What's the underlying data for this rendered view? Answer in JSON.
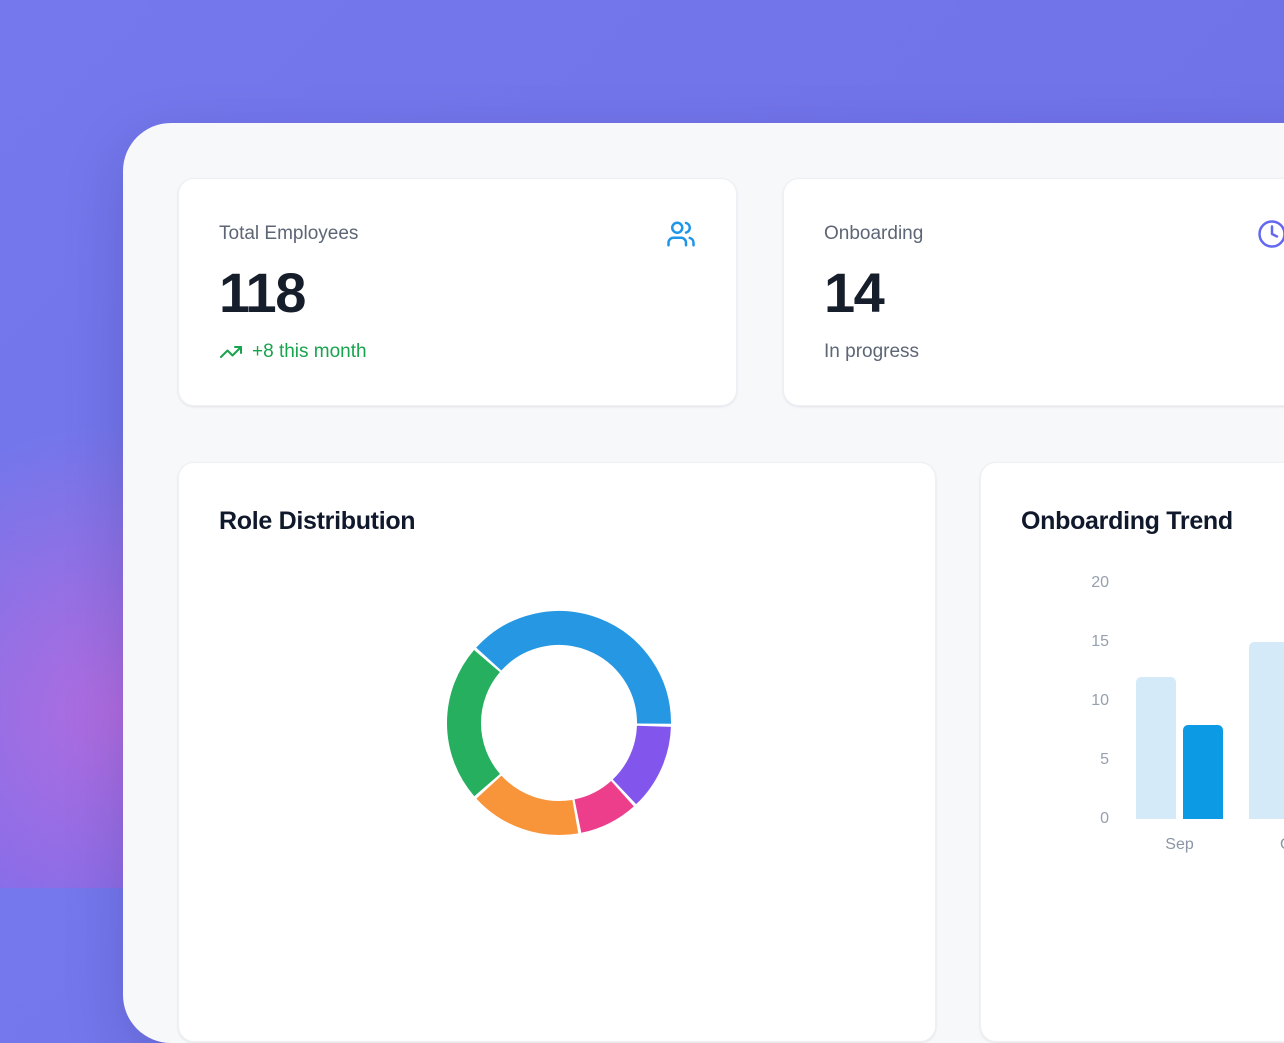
{
  "theme": {
    "background_purple": "#7174EA",
    "panel_background": "#F7F8FA",
    "card_background": "#FFFFFF",
    "heading_text": "#10182B",
    "muted_text": "#5D6675",
    "axis_text": "#96A0AE",
    "positive_green": "#18A44D"
  },
  "stats": [
    {
      "label": "Total Employees",
      "value": "118",
      "sub": "+8 this month",
      "sub_color": "#18A44D",
      "icon": "users-icon",
      "icon_color": "#1E96E8"
    },
    {
      "label": "Onboarding",
      "value": "14",
      "sub": "In progress",
      "sub_color": "#5D6675",
      "icon": "clock-icon",
      "icon_color": "#6468EF"
    }
  ],
  "cards": {
    "role_distribution": {
      "title": "Role Distribution"
    },
    "onboarding_trend": {
      "title": "Onboarding Trend"
    }
  },
  "chart_data": [
    {
      "type": "pie",
      "variant": "donut",
      "title": "Role Distribution",
      "legend_position": "none-visible",
      "start_angle_deg": -48.5,
      "segments": [
        {
          "color": "#2697E3",
          "percent": 38.8
        },
        {
          "color": "#8255EC",
          "percent": 12.8
        },
        {
          "color": "#ED3E8C",
          "percent": 8.9
        },
        {
          "color": "#F8953B",
          "percent": 16.4
        },
        {
          "color": "#27AF60",
          "percent": 23.1
        }
      ]
    },
    {
      "type": "bar",
      "title": "Onboarding Trend",
      "categories": [
        "Sep",
        "Oct"
      ],
      "series": [
        {
          "name": "light",
          "color": "#D5EAF9",
          "values": [
            12,
            15
          ]
        },
        {
          "name": "dark",
          "color": "#0C9AE4",
          "values": [
            8,
            null
          ]
        }
      ],
      "ylim": [
        0,
        20
      ],
      "yticks": [
        20,
        15,
        10,
        5,
        0
      ],
      "grid": false,
      "legend_position": "none-visible"
    }
  ]
}
